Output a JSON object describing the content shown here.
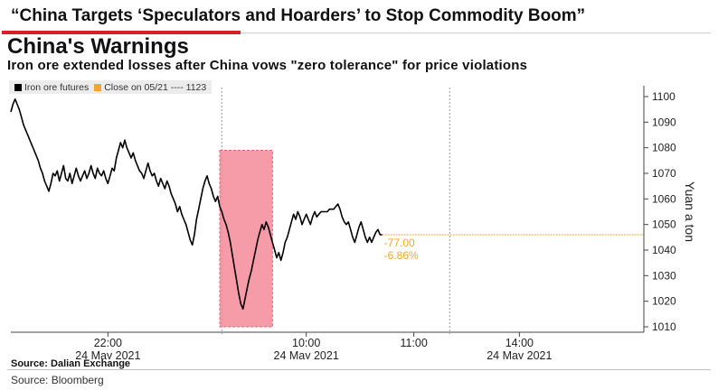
{
  "headline": "“China Targets ‘Speculators and Hoarders’ to Stop Commodity Boom”",
  "title": "China's Warnings",
  "subtitle": "Iron ore extended losses after China vows \"zero tolerance\" for price violations",
  "source": "Source: Dalian Exchange",
  "credit": "Source: Bloomberg",
  "colors": {
    "series": "#000000",
    "reference": "#f3a530",
    "highlight": "#f48b99",
    "highlight_border": "#e5616f",
    "axis": "#444444"
  },
  "chart_data": {
    "type": "line",
    "title": "China's Warnings",
    "subtitle": "Iron ore extended losses after China vows \"zero tolerance\" for price violations",
    "ylabel": "Yuan a ton",
    "ylim": [
      1010,
      1100
    ],
    "yticks": [
      1010,
      1020,
      1030,
      1040,
      1050,
      1060,
      1070,
      1080,
      1090,
      1100
    ],
    "y_axis_position": "right",
    "x_tick_labels": [
      {
        "time": "22:00",
        "date": "24 May 2021"
      },
      {
        "time": "10:00",
        "date": "24 May 2021"
      },
      {
        "time": "11:00",
        "date": ""
      },
      {
        "time": "14:00",
        "date": "24 May 2021"
      }
    ],
    "legend": [
      "Iron ore futures",
      "Close on 05/21 ---- 1123"
    ],
    "legend_placement": "top-left",
    "series": [
      {
        "name": "Iron ore futures",
        "points": [
          [
            0,
            1094
          ],
          [
            1,
            1097
          ],
          [
            2,
            1099
          ],
          [
            3,
            1097
          ],
          [
            4,
            1095
          ],
          [
            5,
            1092
          ],
          [
            6,
            1089
          ],
          [
            7,
            1087
          ],
          [
            8,
            1085
          ],
          [
            9,
            1083
          ],
          [
            10,
            1081
          ],
          [
            11,
            1079
          ],
          [
            12,
            1077
          ],
          [
            13,
            1075
          ],
          [
            14,
            1072
          ],
          [
            15,
            1070
          ],
          [
            16,
            1067
          ],
          [
            17,
            1065
          ],
          [
            18,
            1063
          ],
          [
            19,
            1066
          ],
          [
            20,
            1070
          ],
          [
            21,
            1069
          ],
          [
            22,
            1071
          ],
          [
            23,
            1067
          ],
          [
            24,
            1070
          ],
          [
            25,
            1073
          ],
          [
            26,
            1068
          ],
          [
            27,
            1067
          ],
          [
            28,
            1070
          ],
          [
            29,
            1066
          ],
          [
            30,
            1069
          ],
          [
            31,
            1072
          ],
          [
            32,
            1069
          ],
          [
            33,
            1067
          ],
          [
            34,
            1069
          ],
          [
            35,
            1071
          ],
          [
            36,
            1068
          ],
          [
            37,
            1070
          ],
          [
            38,
            1073
          ],
          [
            39,
            1070
          ],
          [
            40,
            1068
          ],
          [
            41,
            1072
          ],
          [
            42,
            1070
          ],
          [
            43,
            1069
          ],
          [
            44,
            1071
          ],
          [
            45,
            1068
          ],
          [
            46,
            1066
          ],
          [
            47,
            1069
          ],
          [
            48,
            1072
          ],
          [
            49,
            1071
          ],
          [
            50,
            1076
          ],
          [
            51,
            1079
          ],
          [
            52,
            1082
          ],
          [
            53,
            1080
          ],
          [
            54,
            1083
          ],
          [
            55,
            1080
          ],
          [
            56,
            1078
          ],
          [
            57,
            1076
          ],
          [
            58,
            1078
          ],
          [
            59,
            1075
          ],
          [
            60,
            1073
          ],
          [
            61,
            1071
          ],
          [
            62,
            1070
          ],
          [
            63,
            1068
          ],
          [
            64,
            1071
          ],
          [
            65,
            1074
          ],
          [
            66,
            1071
          ],
          [
            67,
            1069
          ],
          [
            68,
            1070
          ],
          [
            69,
            1067
          ],
          [
            70,
            1065
          ],
          [
            71,
            1068
          ],
          [
            72,
            1066
          ],
          [
            73,
            1064
          ],
          [
            74,
            1067
          ],
          [
            75,
            1065
          ],
          [
            76,
            1062
          ],
          [
            77,
            1060
          ],
          [
            78,
            1058
          ],
          [
            79,
            1055
          ],
          [
            80,
            1057
          ],
          [
            81,
            1054
          ],
          [
            82,
            1052
          ],
          [
            83,
            1050
          ],
          [
            84,
            1047
          ],
          [
            85,
            1044
          ],
          [
            86,
            1042
          ],
          [
            87,
            1046
          ],
          [
            88,
            1052
          ],
          [
            89,
            1056
          ],
          [
            90,
            1060
          ],
          [
            91,
            1064
          ],
          [
            92,
            1067
          ],
          [
            93,
            1069
          ],
          [
            94,
            1066
          ],
          [
            95,
            1064
          ],
          [
            96,
            1061
          ],
          [
            97,
            1059
          ],
          [
            98,
            1061
          ],
          [
            99,
            1057
          ],
          [
            100,
            1055
          ],
          [
            101,
            1052
          ],
          [
            102,
            1050
          ],
          [
            103,
            1047
          ],
          [
            104,
            1043
          ],
          [
            105,
            1038
          ],
          [
            106,
            1033
          ],
          [
            107,
            1028
          ],
          [
            108,
            1023
          ],
          [
            109,
            1019
          ],
          [
            110,
            1017
          ],
          [
            111,
            1021
          ],
          [
            112,
            1025
          ],
          [
            113,
            1029
          ],
          [
            114,
            1032
          ],
          [
            115,
            1036
          ],
          [
            116,
            1040
          ],
          [
            117,
            1044
          ],
          [
            118,
            1047
          ],
          [
            119,
            1050
          ],
          [
            120,
            1048
          ],
          [
            121,
            1051
          ],
          [
            122,
            1049
          ],
          [
            123,
            1046
          ],
          [
            124,
            1043
          ],
          [
            125,
            1040
          ],
          [
            126,
            1037
          ],
          [
            127,
            1039
          ],
          [
            128,
            1036
          ],
          [
            129,
            1039
          ],
          [
            130,
            1043
          ],
          [
            131,
            1045
          ],
          [
            132,
            1048
          ],
          [
            133,
            1051
          ],
          [
            134,
            1054
          ],
          [
            135,
            1052
          ],
          [
            136,
            1055
          ],
          [
            137,
            1053
          ],
          [
            138,
            1050
          ],
          [
            139,
            1052
          ],
          [
            140,
            1054
          ],
          [
            141,
            1052
          ],
          [
            142,
            1050
          ],
          [
            143,
            1053
          ],
          [
            144,
            1055
          ],
          [
            145,
            1053
          ],
          [
            146,
            1054
          ],
          [
            147,
            1055
          ],
          [
            148,
            1055
          ],
          [
            149,
            1055
          ],
          [
            150,
            1055
          ],
          [
            151,
            1056
          ],
          [
            152,
            1056
          ],
          [
            153,
            1056
          ],
          [
            154,
            1057
          ],
          [
            155,
            1058
          ],
          [
            156,
            1056
          ],
          [
            157,
            1053
          ],
          [
            158,
            1051
          ],
          [
            159,
            1050
          ],
          [
            160,
            1051
          ],
          [
            161,
            1048
          ],
          [
            162,
            1045
          ],
          [
            163,
            1043
          ],
          [
            164,
            1046
          ],
          [
            165,
            1049
          ],
          [
            166,
            1051
          ],
          [
            167,
            1048
          ],
          [
            168,
            1045
          ],
          [
            169,
            1043
          ],
          [
            170,
            1045
          ],
          [
            171,
            1043
          ],
          [
            172,
            1045
          ],
          [
            173,
            1047
          ],
          [
            174,
            1048
          ],
          [
            175,
            1046
          ],
          [
            176,
            1046
          ]
        ]
      },
      {
        "name": "Close on 05/21 ---- 1123",
        "value": 1123
      }
    ],
    "reference_line": {
      "value": 1046,
      "from_index": 176
    },
    "annotations": [
      "-77.00",
      "-6.86%"
    ],
    "highlight_region": {
      "from_index": 99,
      "to_index": 124,
      "ymin": 1010,
      "ymax": 1079
    },
    "x_domain": [
      0,
      300
    ],
    "x_tick_positions": [
      46,
      140,
      191,
      241
    ],
    "gridlines_vertical_dotted_at": [
      100,
      208
    ]
  }
}
